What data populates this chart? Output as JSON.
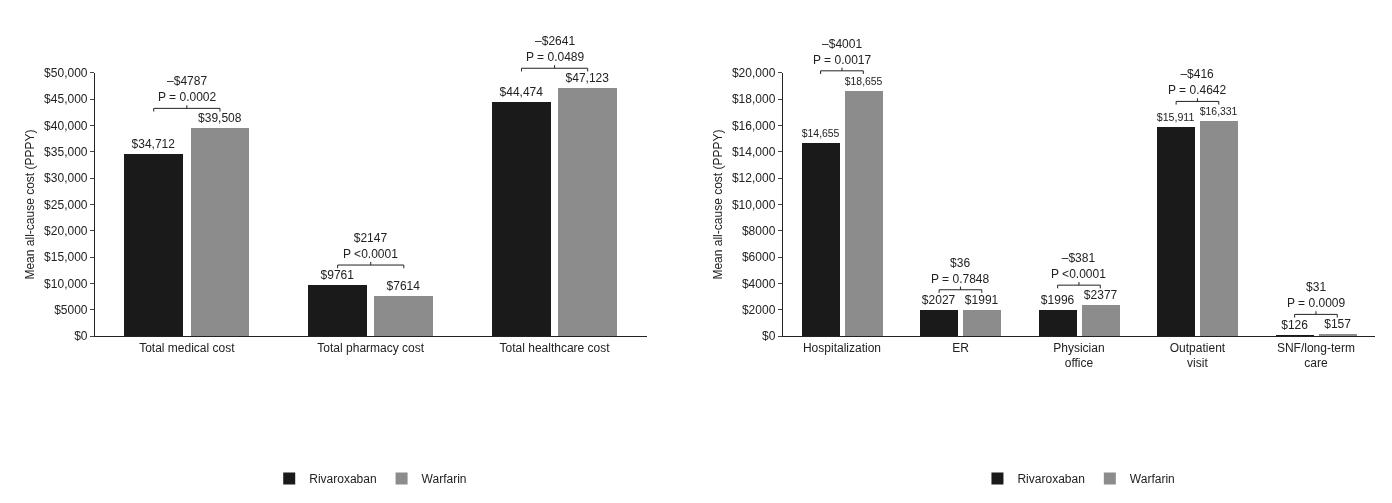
{
  "chart_data": [
    {
      "type": "bar",
      "ylabel": "Mean all-cause cost (PPPY)",
      "categories": [
        "Total medical cost",
        "Total pharmacy cost",
        "Total healthcare cost"
      ],
      "series": [
        {
          "name": "Rivaroxaban",
          "color": "#1a1a1a",
          "values": [
            34712,
            9761,
            44474
          ],
          "value_labels": [
            "$34,712",
            "$9761",
            "$44,474"
          ]
        },
        {
          "name": "Warfarin",
          "color": "#8c8c8c",
          "values": [
            39508,
            7614,
            47123
          ],
          "value_labels": [
            "$39,508",
            "$7614",
            "$47,123"
          ]
        }
      ],
      "ylim": [
        0,
        50000
      ],
      "yticks": [
        {
          "value": 0,
          "label": "$0"
        },
        {
          "value": 5000,
          "label": "$5000"
        },
        {
          "value": 10000,
          "label": "$10,000"
        },
        {
          "value": 15000,
          "label": "$15,000"
        },
        {
          "value": 20000,
          "label": "$20,000"
        },
        {
          "value": 25000,
          "label": "$25,000"
        },
        {
          "value": 30000,
          "label": "$30,000"
        },
        {
          "value": 35000,
          "label": "$35,000"
        },
        {
          "value": 40000,
          "label": "$40,000"
        },
        {
          "value": 45000,
          "label": "$45,000"
        },
        {
          "value": 50000,
          "label": "$50,000"
        }
      ],
      "annotations": [
        "–$4787\nP = 0.0002",
        "$2147\nP <0.0001",
        "–$2641\nP = 0.0489"
      ],
      "legend": "bottom",
      "grid": false
    },
    {
      "type": "bar",
      "ylabel": "Mean all-cause cost (PPPY)",
      "categories": [
        "Hospitalization",
        "ER",
        "Physician\noffice",
        "Outpatient\nvisit",
        "SNF/long-term\ncare"
      ],
      "series": [
        {
          "name": "Rivaroxaban",
          "color": "#1a1a1a",
          "values": [
            14655,
            2027,
            1996,
            15911,
            126
          ],
          "value_labels": [
            "$14,655",
            "$2027",
            "$1996",
            "$15,911",
            "$126"
          ]
        },
        {
          "name": "Warfarin",
          "color": "#8c8c8c",
          "values": [
            18655,
            1991,
            2377,
            16331,
            157
          ],
          "value_labels": [
            "$18,655",
            "$1991",
            "$2377",
            "$16,331",
            "$157"
          ]
        }
      ],
      "ylim": [
        0,
        20000
      ],
      "yticks": [
        {
          "value": 0,
          "label": "$0"
        },
        {
          "value": 2000,
          "label": "$2000"
        },
        {
          "value": 4000,
          "label": "$4000"
        },
        {
          "value": 6000,
          "label": "$6000"
        },
        {
          "value": 8000,
          "label": "$8000"
        },
        {
          "value": 10000,
          "label": "$10,000"
        },
        {
          "value": 12000,
          "label": "$12,000"
        },
        {
          "value": 14000,
          "label": "$14,000"
        },
        {
          "value": 16000,
          "label": "$16,000"
        },
        {
          "value": 18000,
          "label": "$18,000"
        },
        {
          "value": 20000,
          "label": "$20,000"
        }
      ],
      "annotations": [
        "–$4001\nP = 0.0017",
        "$36\nP = 0.7848",
        "–$381\nP <0.0001",
        "–$416\nP = 0.4642",
        "$31\nP = 0.0009"
      ],
      "legend": "bottom",
      "grid": false
    }
  ]
}
